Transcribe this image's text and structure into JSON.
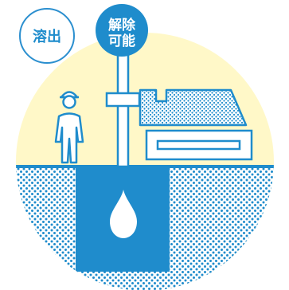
{
  "badges": {
    "left": {
      "label": "溶出"
    },
    "right": {
      "line1": "解除",
      "line2": "可能"
    }
  },
  "colors": {
    "blue": "#1f8ccc",
    "dark_blue": "#0f6fad",
    "outline_blue": "#2b8fcf",
    "light_yellow": "#fff8c8",
    "white": "#ffffff"
  },
  "icons": {
    "worker": "worker-icon",
    "drop": "water-drop-icon",
    "factory": "building-icon",
    "pipe": "well-pipe-icon"
  }
}
